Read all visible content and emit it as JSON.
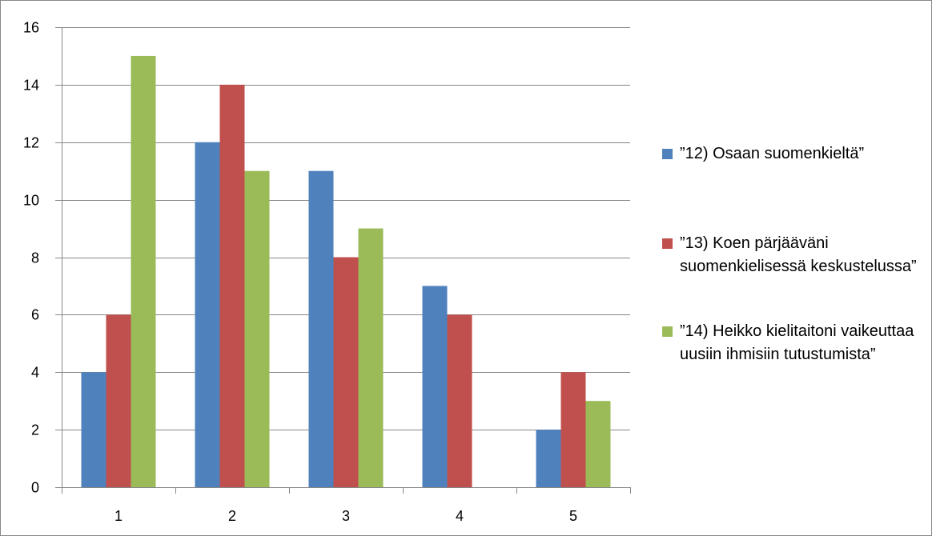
{
  "chart_data": {
    "type": "bar",
    "categories": [
      "1",
      "2",
      "3",
      "4",
      "5"
    ],
    "series": [
      {
        "name": "”12) Osaan suomenkieltä”",
        "values": [
          4,
          12,
          11,
          7,
          2
        ],
        "color": "#4f81bd"
      },
      {
        "name": "”13) Koen pärjääväni suomenkielisessä keskustelussa”",
        "values": [
          6,
          14,
          8,
          6,
          4
        ],
        "color": "#c0504d"
      },
      {
        "name": "”14) Heikko kielitaitoni vaikeuttaa uusiin ihmisiin tutustumista”",
        "values": [
          15,
          11,
          9,
          0,
          3
        ],
        "color": "#9bbb59"
      }
    ],
    "ylim": [
      0,
      16
    ],
    "yticks": [
      0,
      2,
      4,
      6,
      8,
      10,
      12,
      14,
      16
    ],
    "grid": true,
    "legend_position": "right",
    "title": "",
    "xlabel": "",
    "ylabel": ""
  }
}
